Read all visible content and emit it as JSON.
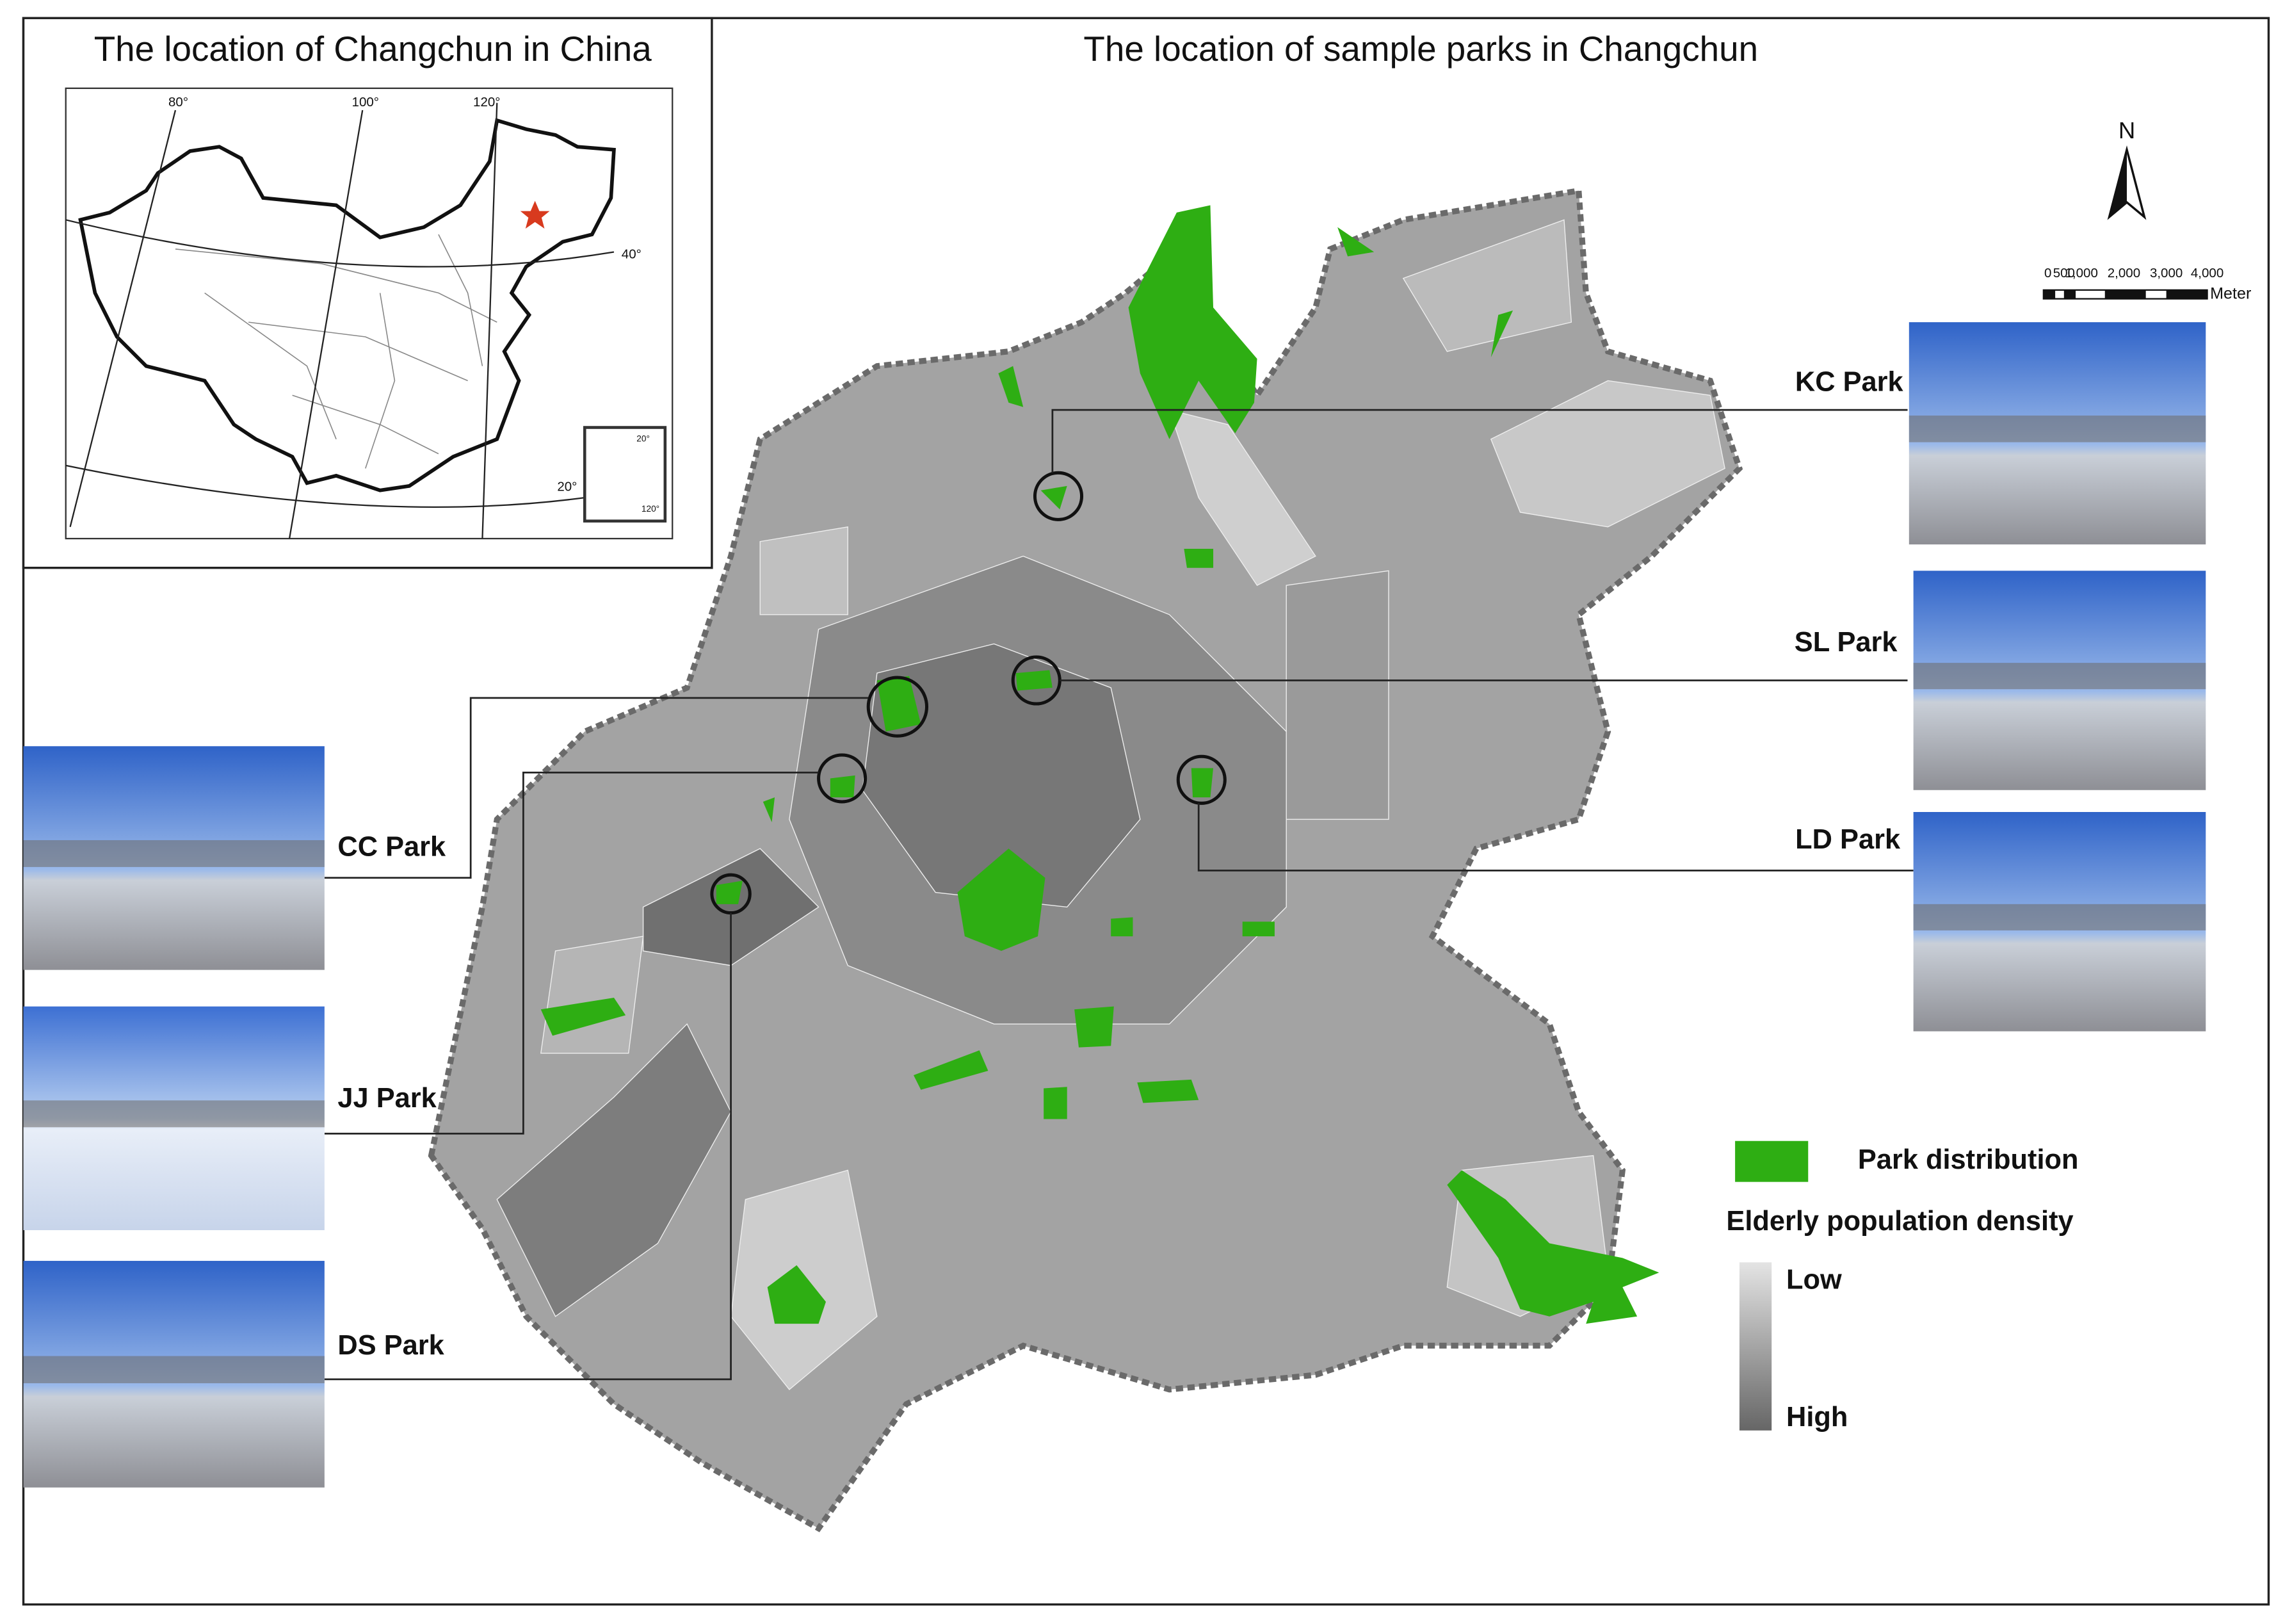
{
  "inset": {
    "title": "The location of Changchun in China",
    "graticule_labels": [
      "80°",
      "100°",
      "120°",
      "40°",
      "20°"
    ],
    "south_sea_labels": [
      "20°",
      "120°"
    ]
  },
  "map": {
    "title": "The location of sample parks in Changchun",
    "north": "N",
    "scale_bar": {
      "labels": [
        "0",
        "500",
        "1,000",
        "2,000",
        "3,000",
        "4,000"
      ],
      "unit": "Meter"
    },
    "parks": [
      {
        "label": "KC Park"
      },
      {
        "label": "SL Park"
      },
      {
        "label": "LD Park"
      },
      {
        "label": "CC Park"
      },
      {
        "label": "JJ Park"
      },
      {
        "label": "DS Park"
      }
    ],
    "legend": {
      "park": "Park distribution",
      "density_title": "Elderly population density",
      "low": "Low",
      "high": "High"
    }
  }
}
